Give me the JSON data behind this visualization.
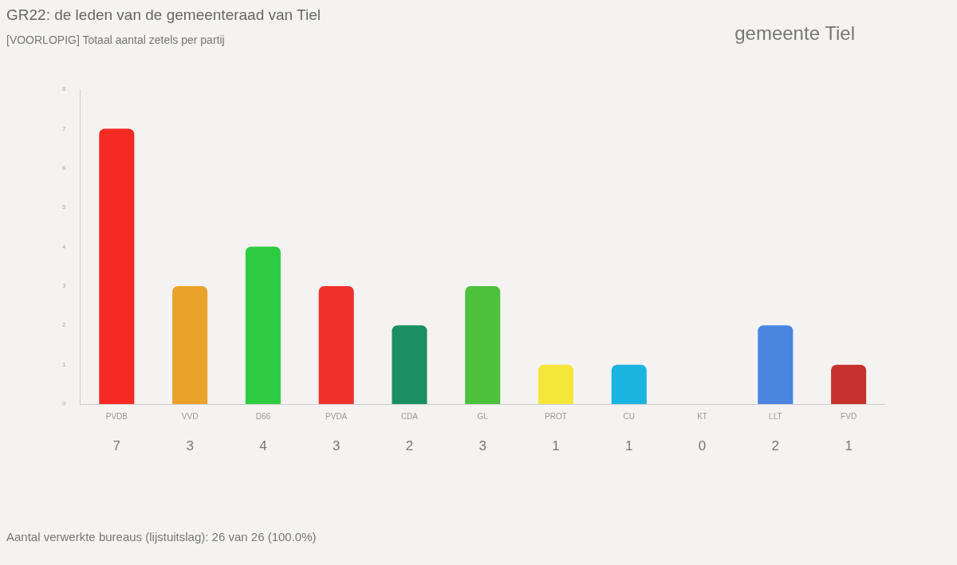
{
  "chart_data": {
    "type": "bar",
    "title": "GR22: de leden van de gemeenteraad van Tiel",
    "subtitle": "[VOORLOPIG] Totaal aantal zetels per partij",
    "categories": [
      "PVDB",
      "VVD",
      "D66",
      "PVDA",
      "CDA",
      "GL",
      "PROT",
      "CU",
      "KT",
      "LLT",
      "FVD"
    ],
    "values": [
      7,
      3,
      4,
      3,
      2,
      3,
      1,
      1,
      0,
      2,
      1
    ],
    "colors": [
      "#f52a22",
      "#eaa22a",
      "#2ecc40",
      "#f0302a",
      "#1a8f62",
      "#4cc23c",
      "#f5e63a",
      "#1ab4e0",
      "#888888",
      "#4a86e0",
      "#c8322c"
    ],
    "ylim": [
      0,
      8
    ],
    "yticks": [
      0,
      1,
      2,
      3,
      4,
      5,
      6,
      7,
      8
    ],
    "grid": false,
    "legend": false,
    "data_labels": true,
    "annotations": [
      "gemeente Tiel",
      "Aantal verwerkte bureaus (lijstuitslag): 26 van 26 (100.0%)"
    ]
  }
}
